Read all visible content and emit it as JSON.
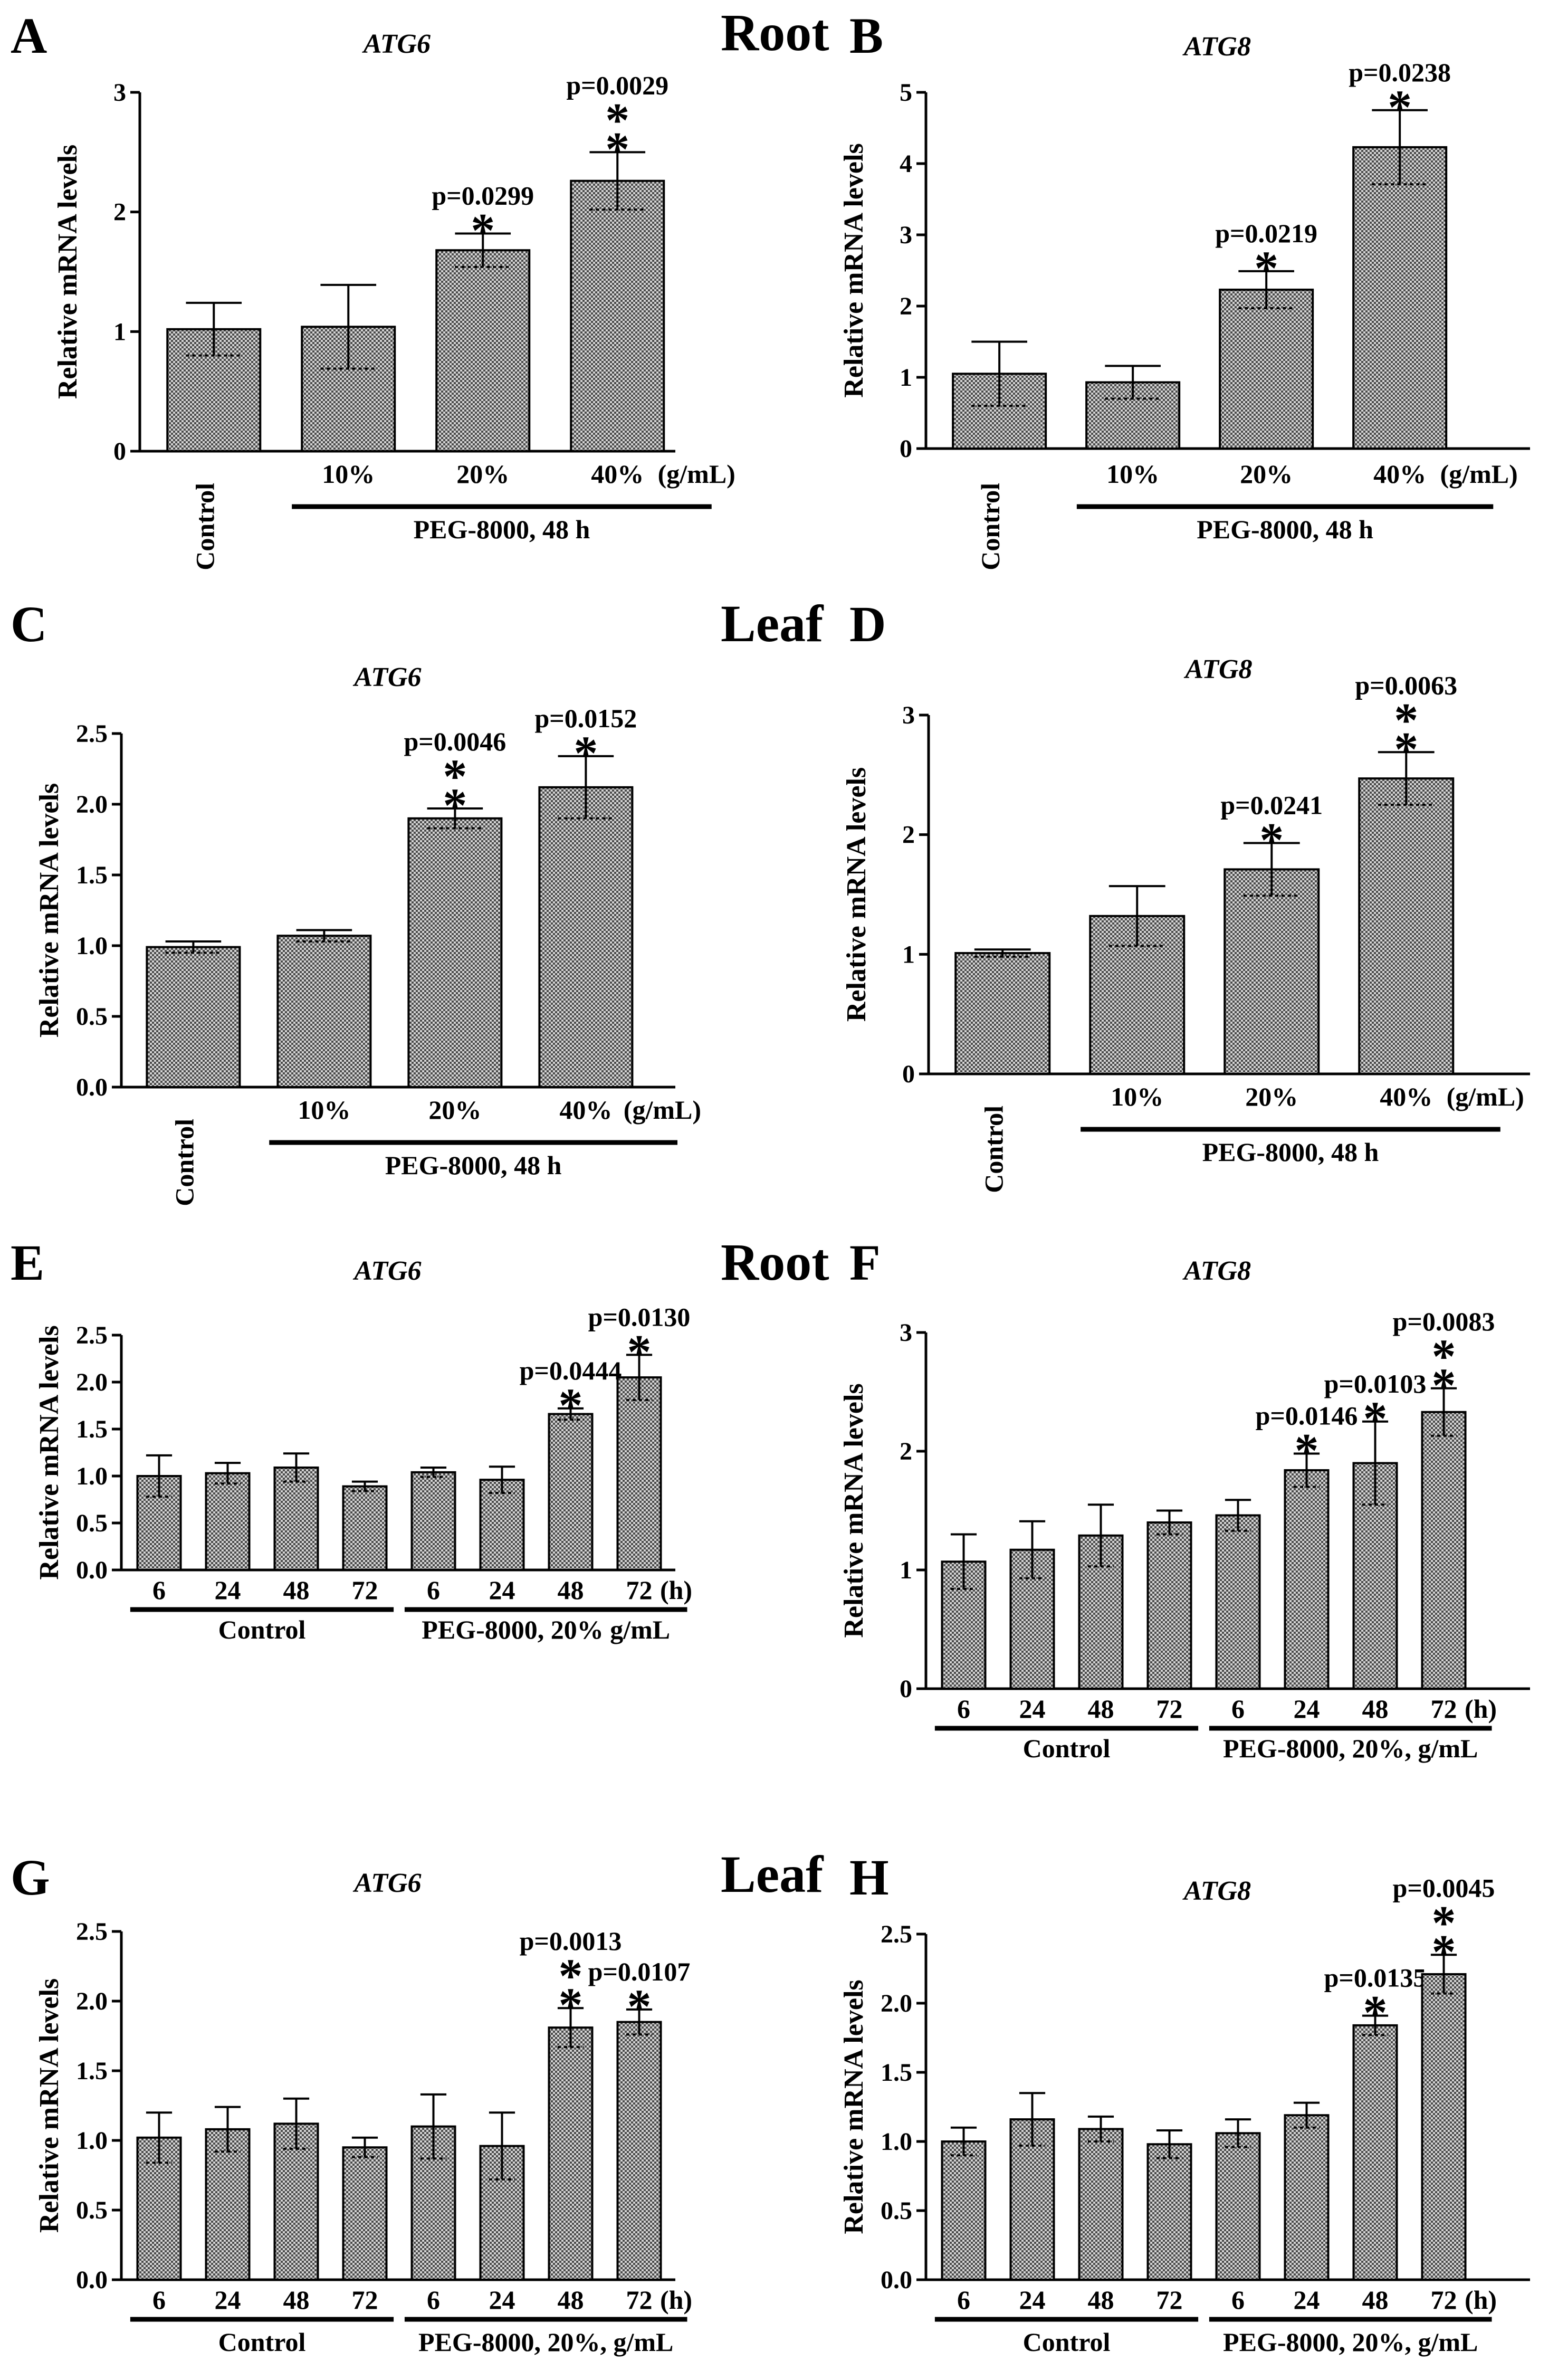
{
  "colors": {
    "ink": "#000000",
    "bar_fill": "#8c8c8c",
    "background": "#ffffff"
  },
  "sections": [
    "Root",
    "Leaf",
    "Root",
    "Leaf"
  ],
  "chart_data": [
    {
      "panel": "A",
      "type": "bar",
      "title": "ATG6",
      "ylabel": "Relative mRNA levels",
      "ylim": [
        0,
        3
      ],
      "yticks": [
        "0",
        "1",
        "2",
        "3"
      ],
      "categories": [
        "Control",
        "10%",
        "20%",
        "40%"
      ],
      "units_label": "(g/mL)",
      "values": [
        1.02,
        1.04,
        1.68,
        2.26
      ],
      "errors": [
        0.22,
        0.35,
        0.14,
        0.24
      ],
      "stars": [
        "",
        "",
        "*",
        "**"
      ],
      "pvalues": [
        "",
        "",
        "p=0.0299",
        "p=0.0029"
      ],
      "groups": [
        {
          "label": "PEG-8000, 48 h",
          "from": 1,
          "to": 3
        }
      ]
    },
    {
      "panel": "B",
      "type": "bar",
      "title": "ATG8",
      "ylabel": "Relative mRNA levels",
      "ylim": [
        0,
        5
      ],
      "yticks": [
        "0",
        "1",
        "2",
        "3",
        "4",
        "5"
      ],
      "categories": [
        "Control",
        "10%",
        "20%",
        "40%"
      ],
      "units_label": "(g/mL)",
      "values": [
        1.05,
        0.93,
        2.23,
        4.23
      ],
      "errors": [
        0.45,
        0.23,
        0.26,
        0.52
      ],
      "stars": [
        "",
        "",
        "*",
        "*"
      ],
      "pvalues": [
        "",
        "",
        "p=0.0219",
        "p=0.0238"
      ],
      "groups": [
        {
          "label": "PEG-8000, 48 h",
          "from": 1,
          "to": 3
        }
      ]
    },
    {
      "panel": "C",
      "type": "bar",
      "title": "ATG6",
      "ylabel": "Relative mRNA levels",
      "ylim": [
        0,
        2.5
      ],
      "yticks": [
        "0.0",
        "0.5",
        "1.0",
        "1.5",
        "2.0",
        "2.5"
      ],
      "categories": [
        "Control",
        "10%",
        "20%",
        "40%"
      ],
      "units_label": "(g/mL)",
      "values": [
        0.99,
        1.07,
        1.9,
        2.12
      ],
      "errors": [
        0.04,
        0.04,
        0.07,
        0.22
      ],
      "stars": [
        "",
        "",
        "**",
        "*"
      ],
      "pvalues": [
        "",
        "",
        "p=0.0046",
        "p=0.0152"
      ],
      "groups": [
        {
          "label": "PEG-8000, 48 h",
          "from": 1,
          "to": 3
        }
      ]
    },
    {
      "panel": "D",
      "type": "bar",
      "title": "ATG8",
      "ylabel": "Relative mRNA levels",
      "ylim": [
        0,
        3
      ],
      "yticks": [
        "0",
        "1",
        "2",
        "3"
      ],
      "categories": [
        "Control",
        "10%",
        "20%",
        "40%"
      ],
      "units_label": "(g/mL)",
      "values": [
        1.01,
        1.32,
        1.71,
        2.47
      ],
      "errors": [
        0.03,
        0.25,
        0.22,
        0.22
      ],
      "stars": [
        "",
        "",
        "*",
        "**"
      ],
      "pvalues": [
        "",
        "",
        "p=0.0241",
        "p=0.0063"
      ],
      "groups": [
        {
          "label": "PEG-8000, 48 h",
          "from": 1,
          "to": 3
        }
      ]
    },
    {
      "panel": "E",
      "type": "bar",
      "title": "ATG6",
      "ylabel": "Relative mRNA levels",
      "ylim": [
        0,
        2.5
      ],
      "yticks": [
        "0.0",
        "0.5",
        "1.0",
        "1.5",
        "2.0",
        "2.5"
      ],
      "categories": [
        "6",
        "24",
        "48",
        "72",
        "6",
        "24",
        "48",
        "72"
      ],
      "units_label": "(h)",
      "values": [
        1.0,
        1.03,
        1.09,
        0.89,
        1.04,
        0.96,
        1.66,
        2.05
      ],
      "errors": [
        0.22,
        0.11,
        0.15,
        0.05,
        0.05,
        0.14,
        0.06,
        0.24
      ],
      "stars": [
        "",
        "",
        "",
        "",
        "",
        "",
        "*",
        "*"
      ],
      "pvalues": [
        "",
        "",
        "",
        "",
        "",
        "",
        "p=0.0444",
        "p=0.0130"
      ],
      "groups": [
        {
          "label": "Control",
          "from": 0,
          "to": 3
        },
        {
          "label": "PEG-8000, 20% g/mL",
          "from": 4,
          "to": 7
        }
      ]
    },
    {
      "panel": "F",
      "type": "bar",
      "title": "ATG8",
      "ylabel": "Relative mRNA levels",
      "ylim": [
        0,
        3
      ],
      "yticks": [
        "0",
        "1",
        "2",
        "3"
      ],
      "categories": [
        "6",
        "24",
        "48",
        "72",
        "6",
        "24",
        "48",
        "72"
      ],
      "units_label": "(h)",
      "values": [
        1.07,
        1.17,
        1.29,
        1.4,
        1.46,
        1.84,
        1.9,
        2.33
      ],
      "errors": [
        0.23,
        0.24,
        0.26,
        0.1,
        0.13,
        0.14,
        0.35,
        0.2
      ],
      "stars": [
        "",
        "",
        "",
        "",
        "",
        "*",
        "*",
        "**"
      ],
      "pvalues": [
        "",
        "",
        "",
        "",
        "",
        "p=0.0146",
        "p=0.0103",
        "p=0.0083"
      ],
      "groups": [
        {
          "label": "Control",
          "from": 0,
          "to": 3
        },
        {
          "label": "PEG-8000, 20%, g/mL",
          "from": 4,
          "to": 7
        }
      ]
    },
    {
      "panel": "G",
      "type": "bar",
      "title": "ATG6",
      "ylabel": "Relative mRNA levels",
      "ylim": [
        0,
        2.5
      ],
      "yticks": [
        "0.0",
        "0.5",
        "1.0",
        "1.5",
        "2.0",
        "2.5"
      ],
      "categories": [
        "6",
        "24",
        "48",
        "72",
        "6",
        "24",
        "48",
        "72"
      ],
      "units_label": "(h)",
      "values": [
        1.02,
        1.08,
        1.12,
        0.95,
        1.1,
        0.96,
        1.81,
        1.85
      ],
      "errors": [
        0.18,
        0.16,
        0.18,
        0.07,
        0.23,
        0.24,
        0.14,
        0.09
      ],
      "stars": [
        "",
        "",
        "",
        "",
        "",
        "",
        "**",
        "*"
      ],
      "pvalues": [
        "",
        "",
        "",
        "",
        "",
        "",
        "p=0.0013",
        "p=0.0107"
      ],
      "groups": [
        {
          "label": "Control",
          "from": 0,
          "to": 3
        },
        {
          "label": "PEG-8000, 20%, g/mL",
          "from": 4,
          "to": 7
        }
      ]
    },
    {
      "panel": "H",
      "type": "bar",
      "title": "ATG8",
      "ylabel": "Relative mRNA levels",
      "ylim": [
        0,
        2.5
      ],
      "yticks": [
        "0.0",
        "0.5",
        "1.0",
        "1.5",
        "2.0",
        "2.5"
      ],
      "categories": [
        "6",
        "24",
        "48",
        "72",
        "6",
        "24",
        "48",
        "72"
      ],
      "units_label": "(h)",
      "values": [
        1.0,
        1.16,
        1.09,
        0.98,
        1.06,
        1.19,
        1.84,
        2.21
      ],
      "errors": [
        0.1,
        0.19,
        0.09,
        0.1,
        0.1,
        0.09,
        0.07,
        0.14
      ],
      "stars": [
        "",
        "",
        "",
        "",
        "",
        "",
        "*",
        "**"
      ],
      "pvalues": [
        "",
        "",
        "",
        "",
        "",
        "",
        "p=0.0135",
        "p=0.0045"
      ],
      "groups": [
        {
          "label": "Control",
          "from": 0,
          "to": 3
        },
        {
          "label": "PEG-8000, 20%, g/mL",
          "from": 4,
          "to": 7
        }
      ]
    }
  ]
}
